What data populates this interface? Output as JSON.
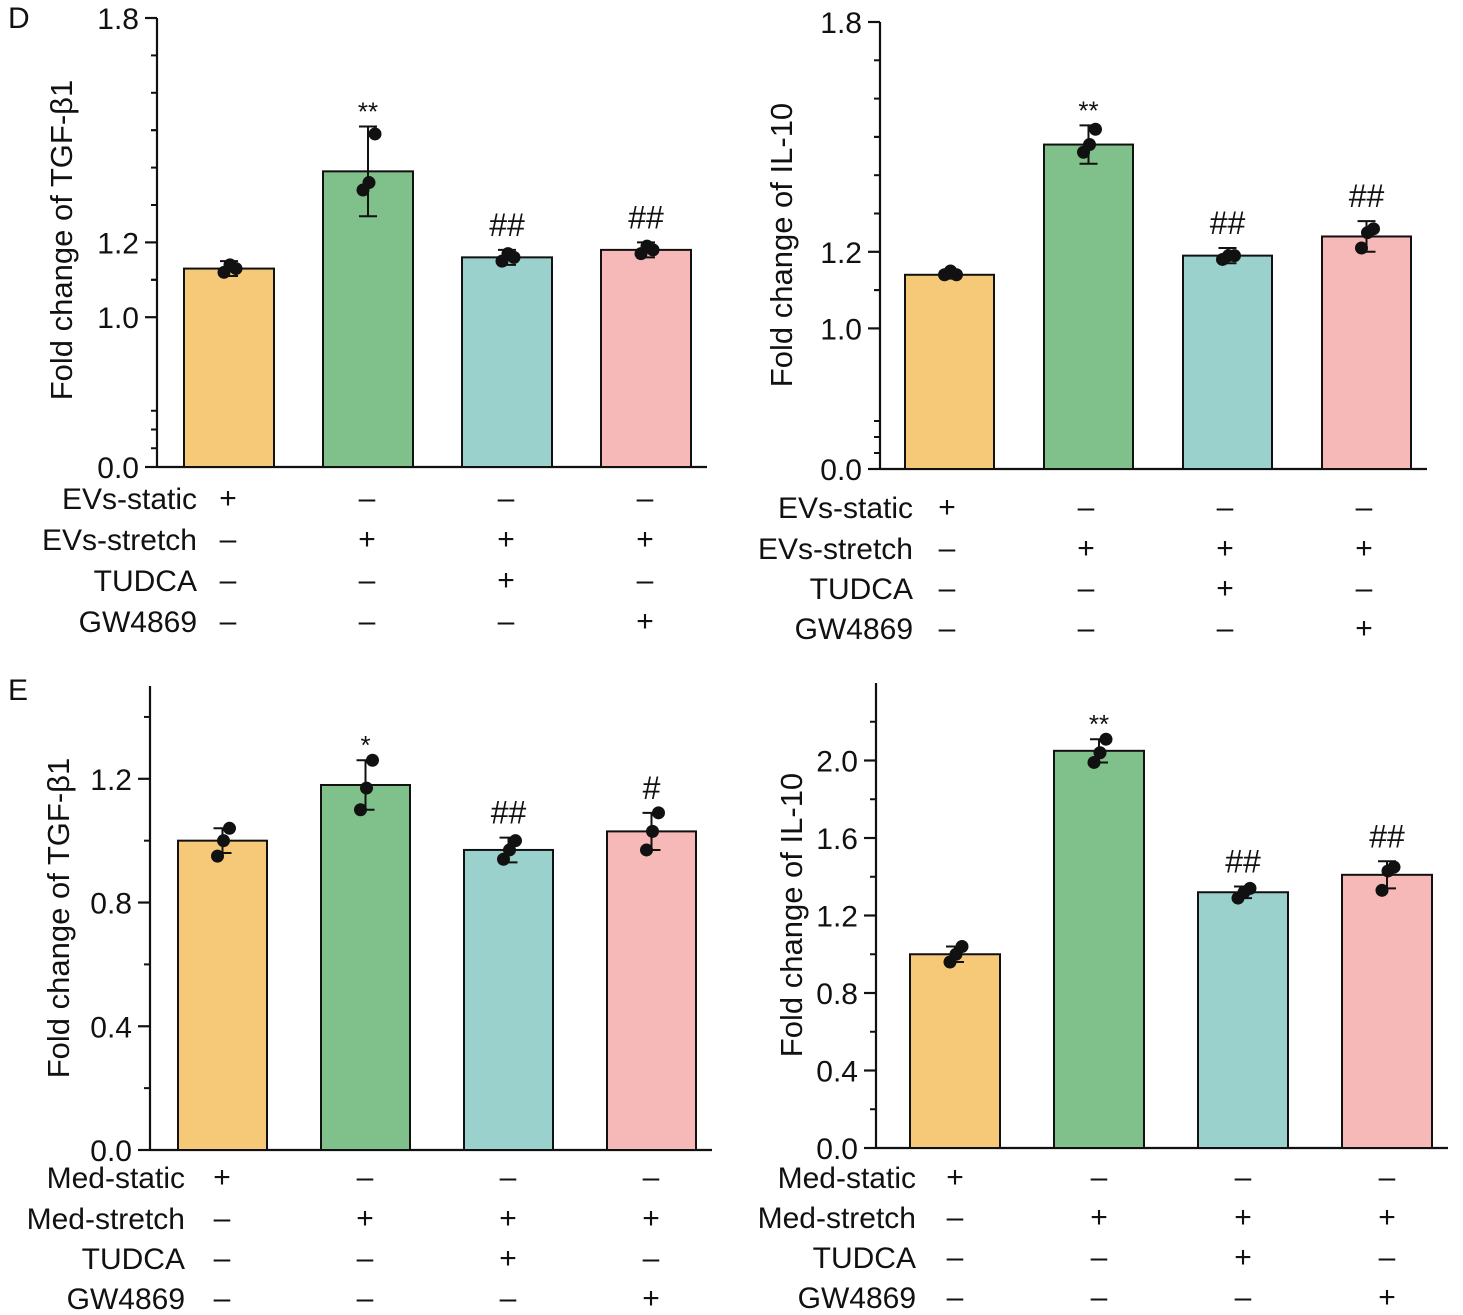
{
  "bar_colors": [
    "#f6c978",
    "#80c08a",
    "#9ad1cc",
    "#f6b9b7"
  ],
  "chart_data": [
    {
      "type": "bar",
      "panel_label": "D",
      "title": "",
      "xlabel": "",
      "ylabel": "Fold change of TGF-β1",
      "ylim_segments": [
        [
          0.0,
          0.4
        ],
        [
          0.8,
          1.8
        ]
      ],
      "yticks": [
        0.0,
        1.0,
        1.2,
        1.8
      ],
      "ytick_labels": [
        "0.0",
        "1.0",
        "1.2",
        "1.8"
      ],
      "values": [
        1.13,
        1.39,
        1.16,
        1.18
      ],
      "errors": [
        0.02,
        0.12,
        0.02,
        0.02
      ],
      "points": [
        [
          1.12,
          1.14,
          1.13
        ],
        [
          1.34,
          1.36,
          1.49
        ],
        [
          1.15,
          1.17,
          1.16
        ],
        [
          1.17,
          1.19,
          1.18
        ]
      ],
      "annotations": [
        "",
        "**",
        "##",
        "##"
      ],
      "conditions": [
        {
          "label": "EVs-static",
          "signs": [
            "+",
            "–",
            "–",
            "–"
          ]
        },
        {
          "label": "EVs-stretch",
          "signs": [
            "–",
            "+",
            "+",
            "+"
          ]
        },
        {
          "label": "TUDCA",
          "signs": [
            "–",
            "–",
            "+",
            "–"
          ]
        },
        {
          "label": "GW4869",
          "signs": [
            "–",
            "–",
            "–",
            "+"
          ]
        }
      ]
    },
    {
      "type": "bar",
      "panel_label": "",
      "title": "",
      "xlabel": "",
      "ylabel": "Fold change of IL-10",
      "ylim_segments": [
        [
          0.0,
          0.4
        ],
        [
          0.8,
          1.8
        ]
      ],
      "yticks": [
        0.0,
        1.0,
        1.2,
        1.8
      ],
      "ytick_labels": [
        "0.0",
        "1.0",
        "1.2",
        "1.8"
      ],
      "values": [
        1.14,
        1.48,
        1.19,
        1.24
      ],
      "errors": [
        0.01,
        0.05,
        0.02,
        0.04
      ],
      "points": [
        [
          1.14,
          1.15,
          1.14
        ],
        [
          1.46,
          1.48,
          1.52
        ],
        [
          1.18,
          1.19,
          1.19
        ],
        [
          1.21,
          1.25,
          1.26
        ]
      ],
      "annotations": [
        "",
        "**",
        "##",
        "##"
      ],
      "conditions": [
        {
          "label": "EVs-static",
          "signs": [
            "+",
            "–",
            "–",
            "–"
          ]
        },
        {
          "label": "EVs-stretch",
          "signs": [
            "–",
            "+",
            "+",
            "+"
          ]
        },
        {
          "label": "TUDCA",
          "signs": [
            "–",
            "–",
            "+",
            "–"
          ]
        },
        {
          "label": "GW4869",
          "signs": [
            "–",
            "–",
            "–",
            "+"
          ]
        }
      ]
    },
    {
      "type": "bar",
      "panel_label": "E",
      "title": "",
      "xlabel": "",
      "ylabel": "Fold change of TGF-β1",
      "ylim_segments": [
        [
          0.0,
          1.5
        ]
      ],
      "yticks": [
        0.0,
        0.4,
        0.8,
        1.2
      ],
      "ytick_labels": [
        "0.0",
        "0.4",
        "0.8",
        "1.2"
      ],
      "values": [
        1.0,
        1.18,
        0.97,
        1.03
      ],
      "errors": [
        0.04,
        0.08,
        0.04,
        0.06
      ],
      "points": [
        [
          0.95,
          1.0,
          1.04
        ],
        [
          1.1,
          1.17,
          1.26
        ],
        [
          0.94,
          0.97,
          1.0
        ],
        [
          0.97,
          1.03,
          1.09
        ]
      ],
      "annotations": [
        "",
        "*",
        "##",
        "#"
      ],
      "conditions": [
        {
          "label": "Med-static",
          "signs": [
            "+",
            "–",
            "–",
            "–"
          ]
        },
        {
          "label": "Med-stretch",
          "signs": [
            "–",
            "+",
            "+",
            "+"
          ]
        },
        {
          "label": "TUDCA",
          "signs": [
            "–",
            "–",
            "+",
            "–"
          ]
        },
        {
          "label": "GW4869",
          "signs": [
            "–",
            "–",
            "–",
            "+"
          ]
        }
      ]
    },
    {
      "type": "bar",
      "panel_label": "",
      "title": "",
      "xlabel": "",
      "ylabel": "Fold change of IL-10",
      "ylim_segments": [
        [
          0.0,
          2.4
        ]
      ],
      "yticks": [
        0.0,
        0.4,
        0.8,
        1.2,
        1.6,
        2.0
      ],
      "ytick_labels": [
        "0.0",
        "0.4",
        "0.8",
        "1.2",
        "1.6",
        "2.0"
      ],
      "values": [
        1.0,
        2.05,
        1.32,
        1.41
      ],
      "errors": [
        0.04,
        0.06,
        0.03,
        0.07
      ],
      "points": [
        [
          0.96,
          1.0,
          1.04
        ],
        [
          1.99,
          2.04,
          2.11
        ],
        [
          1.29,
          1.32,
          1.34
        ],
        [
          1.33,
          1.43,
          1.45
        ]
      ],
      "annotations": [
        "",
        "**",
        "##",
        "##"
      ],
      "conditions": [
        {
          "label": "Med-static",
          "signs": [
            "+",
            "–",
            "–",
            "–"
          ]
        },
        {
          "label": "Med-stretch",
          "signs": [
            "–",
            "+",
            "+",
            "+"
          ]
        },
        {
          "label": "TUDCA",
          "signs": [
            "–",
            "–",
            "+",
            "–"
          ]
        },
        {
          "label": "GW4869",
          "signs": [
            "–",
            "–",
            "–",
            "+"
          ]
        }
      ]
    }
  ]
}
